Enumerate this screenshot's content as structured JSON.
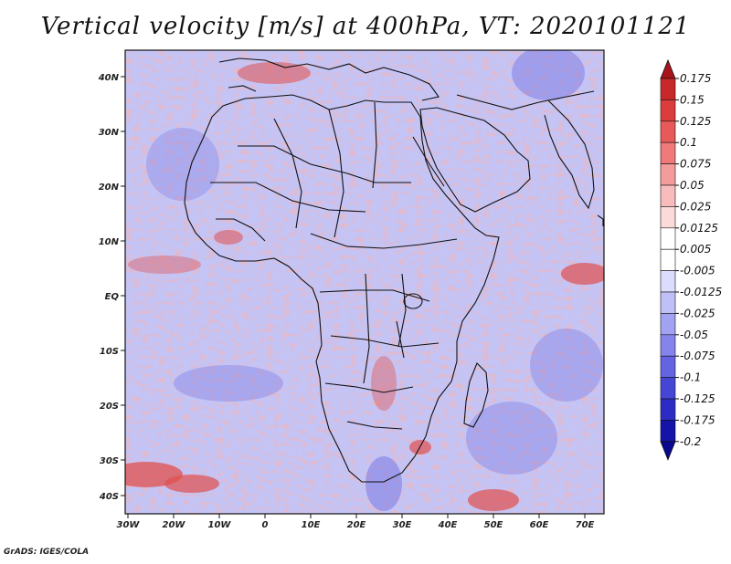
{
  "title": "Vertical velocity [m/s] at 400hPa, VT: 2020101121",
  "credit": "GrADS: IGES/COLA",
  "map": {
    "lon_ticks": [
      "30W",
      "20W",
      "10W",
      "0",
      "10E",
      "20E",
      "30E",
      "40E",
      "50E",
      "60E",
      "70E"
    ],
    "lat_ticks": [
      "40N",
      "30N",
      "20N",
      "10N",
      "EQ",
      "10S",
      "20S",
      "30S",
      "40S"
    ]
  },
  "colorbar": {
    "labels": [
      "0.175",
      "0.15",
      "0.125",
      "0.1",
      "0.075",
      "0.05",
      "0.025",
      "0.0125",
      "0.005",
      "-0.005",
      "-0.0125",
      "-0.025",
      "-0.05",
      "-0.075",
      "-0.1",
      "-0.125",
      "-0.175",
      "-0.2"
    ],
    "colors": [
      "#a8141c",
      "#c8282a",
      "#dc3c3c",
      "#e85a5a",
      "#f07a7a",
      "#f49c9c",
      "#f8bcbc",
      "#fcdada",
      "#ffffff",
      "#ffffff",
      "#dcdcfc",
      "#c0c0f8",
      "#a2a2f2",
      "#8484ec",
      "#6464e2",
      "#4646d6",
      "#2c2cc4",
      "#1414a8",
      "#080890"
    ]
  },
  "field": {
    "positive_color": "#e0504e",
    "negative_color": "#7272e4",
    "base_color": "#c4c4f4"
  }
}
